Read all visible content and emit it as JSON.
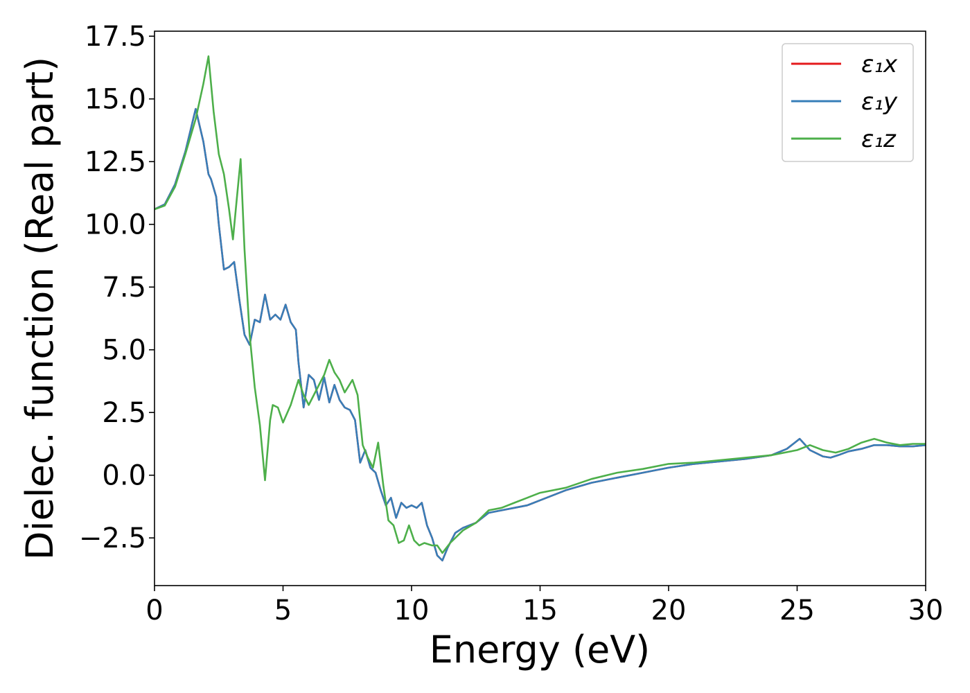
{
  "chart_data": {
    "type": "line",
    "title": "",
    "xlabel": "Energy (eV)",
    "ylabel": "Dielec. function (Real part)",
    "xlim": [
      0,
      30
    ],
    "ylim": [
      -4.4,
      17.7
    ],
    "xticks": [
      0,
      5,
      10,
      15,
      20,
      25,
      30
    ],
    "xtick_labels": [
      "0",
      "5",
      "10",
      "15",
      "20",
      "25",
      "30"
    ],
    "yticks": [
      -2.5,
      0.0,
      2.5,
      5.0,
      7.5,
      10.0,
      12.5,
      15.0,
      17.5
    ],
    "ytick_labels": [
      "−2.5",
      "0.0",
      "2.5",
      "5.0",
      "7.5",
      "10.0",
      "12.5",
      "15.0",
      "17.5"
    ],
    "grid": false,
    "legend_position": "top-right",
    "series": [
      {
        "name": "ε₁x",
        "color": "#e41a1c",
        "x": [
          0,
          0.4,
          0.8,
          1.2,
          1.6,
          1.9,
          2.1,
          2.2,
          2.4,
          2.5,
          2.7,
          2.9,
          3.1,
          3.3,
          3.5,
          3.7,
          3.9,
          4.1,
          4.3,
          4.5,
          4.7,
          4.9,
          5.1,
          5.3,
          5.5,
          5.6,
          5.8,
          6.0,
          6.2,
          6.4,
          6.6,
          6.8,
          7.0,
          7.2,
          7.4,
          7.6,
          7.8,
          8.0,
          8.2,
          8.4,
          8.6,
          8.8,
          9.0,
          9.2,
          9.4,
          9.6,
          9.8,
          10.0,
          10.2,
          10.4,
          10.6,
          10.8,
          11.0,
          11.2,
          11.4,
          11.7,
          12.0,
          12.5,
          13.0,
          13.5,
          14.0,
          14.5,
          15.0,
          16.0,
          17.0,
          18.0,
          19.0,
          20.0,
          21.0,
          22.0,
          23.0,
          24.0,
          24.6,
          25.1,
          25.5,
          26.0,
          26.3,
          26.6,
          27.0,
          27.5,
          28.0,
          28.5,
          29.0,
          29.5,
          30.0
        ],
        "values": [
          10.6,
          10.8,
          11.6,
          12.9,
          14.6,
          13.3,
          12.0,
          11.8,
          11.1,
          10.0,
          8.2,
          8.3,
          8.5,
          7.0,
          5.6,
          5.2,
          6.2,
          6.1,
          7.2,
          6.2,
          6.4,
          6.2,
          6.8,
          6.1,
          5.8,
          4.5,
          2.7,
          4.0,
          3.8,
          3.0,
          3.9,
          2.9,
          3.6,
          3.0,
          2.7,
          2.6,
          2.2,
          0.5,
          1.0,
          0.3,
          0.1,
          -0.6,
          -1.2,
          -0.9,
          -1.7,
          -1.1,
          -1.3,
          -1.2,
          -1.3,
          -1.1,
          -2.0,
          -2.5,
          -3.2,
          -3.4,
          -2.9,
          -2.3,
          -2.1,
          -1.9,
          -1.5,
          -1.4,
          -1.3,
          -1.2,
          -1.0,
          -0.6,
          -0.3,
          -0.1,
          0.1,
          0.3,
          0.45,
          0.55,
          0.65,
          0.8,
          1.05,
          1.45,
          1.0,
          0.75,
          0.7,
          0.8,
          0.95,
          1.05,
          1.2,
          1.2,
          1.15,
          1.15,
          1.2
        ]
      },
      {
        "name": "ε₁y",
        "color": "#377eb8",
        "x": [
          0,
          0.4,
          0.8,
          1.2,
          1.6,
          1.9,
          2.1,
          2.2,
          2.4,
          2.5,
          2.7,
          2.9,
          3.1,
          3.3,
          3.5,
          3.7,
          3.9,
          4.1,
          4.3,
          4.5,
          4.7,
          4.9,
          5.1,
          5.3,
          5.5,
          5.6,
          5.8,
          6.0,
          6.2,
          6.4,
          6.6,
          6.8,
          7.0,
          7.2,
          7.4,
          7.6,
          7.8,
          8.0,
          8.2,
          8.4,
          8.6,
          8.8,
          9.0,
          9.2,
          9.4,
          9.6,
          9.8,
          10.0,
          10.2,
          10.4,
          10.6,
          10.8,
          11.0,
          11.2,
          11.4,
          11.7,
          12.0,
          12.5,
          13.0,
          13.5,
          14.0,
          14.5,
          15.0,
          16.0,
          17.0,
          18.0,
          19.0,
          20.0,
          21.0,
          22.0,
          23.0,
          24.0,
          24.6,
          25.1,
          25.5,
          26.0,
          26.3,
          26.6,
          27.0,
          27.5,
          28.0,
          28.5,
          29.0,
          29.5,
          30.0
        ],
        "values": [
          10.6,
          10.8,
          11.6,
          12.9,
          14.6,
          13.3,
          12.0,
          11.8,
          11.1,
          10.0,
          8.2,
          8.3,
          8.5,
          7.0,
          5.6,
          5.2,
          6.2,
          6.1,
          7.2,
          6.2,
          6.4,
          6.2,
          6.8,
          6.1,
          5.8,
          4.5,
          2.7,
          4.0,
          3.8,
          3.0,
          3.9,
          2.9,
          3.6,
          3.0,
          2.7,
          2.6,
          2.2,
          0.5,
          1.0,
          0.3,
          0.1,
          -0.6,
          -1.2,
          -0.9,
          -1.7,
          -1.1,
          -1.3,
          -1.2,
          -1.3,
          -1.1,
          -2.0,
          -2.5,
          -3.2,
          -3.4,
          -2.9,
          -2.3,
          -2.1,
          -1.9,
          -1.5,
          -1.4,
          -1.3,
          -1.2,
          -1.0,
          -0.6,
          -0.3,
          -0.1,
          0.1,
          0.3,
          0.45,
          0.55,
          0.65,
          0.8,
          1.05,
          1.45,
          1.0,
          0.75,
          0.7,
          0.8,
          0.95,
          1.05,
          1.2,
          1.2,
          1.15,
          1.15,
          1.2
        ]
      },
      {
        "name": "ε₁z",
        "color": "#4daf4a",
        "x": [
          0,
          0.4,
          0.8,
          1.2,
          1.6,
          1.9,
          2.1,
          2.3,
          2.5,
          2.7,
          2.9,
          3.05,
          3.2,
          3.35,
          3.5,
          3.7,
          3.9,
          4.1,
          4.3,
          4.5,
          4.6,
          4.8,
          5.0,
          5.3,
          5.6,
          5.8,
          6.0,
          6.2,
          6.4,
          6.6,
          6.8,
          7.0,
          7.2,
          7.4,
          7.7,
          7.9,
          8.1,
          8.3,
          8.5,
          8.7,
          8.9,
          9.1,
          9.3,
          9.5,
          9.7,
          9.9,
          10.1,
          10.3,
          10.5,
          10.8,
          11.0,
          11.2,
          11.5,
          12.0,
          12.5,
          13.0,
          13.5,
          14.0,
          14.5,
          15.0,
          16.0,
          17.0,
          18.0,
          19.0,
          20.0,
          21.0,
          22.0,
          23.0,
          24.0,
          25.0,
          25.5,
          26.0,
          26.5,
          27.0,
          27.5,
          28.0,
          28.5,
          29.0,
          29.5,
          30.0
        ],
        "values": [
          10.6,
          10.75,
          11.5,
          12.8,
          14.2,
          15.6,
          16.7,
          14.5,
          12.8,
          12.0,
          10.6,
          9.4,
          11.0,
          12.6,
          9.0,
          5.6,
          3.5,
          2.0,
          -0.2,
          2.2,
          2.8,
          2.7,
          2.1,
          2.8,
          3.8,
          3.2,
          2.8,
          3.2,
          3.6,
          4.0,
          4.6,
          4.1,
          3.8,
          3.3,
          3.8,
          3.2,
          1.2,
          0.7,
          0.3,
          1.3,
          -0.4,
          -1.8,
          -2.0,
          -2.7,
          -2.6,
          -2.0,
          -2.6,
          -2.8,
          -2.7,
          -2.8,
          -2.8,
          -3.1,
          -2.7,
          -2.2,
          -1.9,
          -1.4,
          -1.3,
          -1.1,
          -0.9,
          -0.7,
          -0.5,
          -0.15,
          0.1,
          0.25,
          0.45,
          0.5,
          0.6,
          0.7,
          0.8,
          1.0,
          1.2,
          1.0,
          0.9,
          1.05,
          1.3,
          1.45,
          1.3,
          1.2,
          1.25,
          1.25
        ]
      }
    ]
  }
}
